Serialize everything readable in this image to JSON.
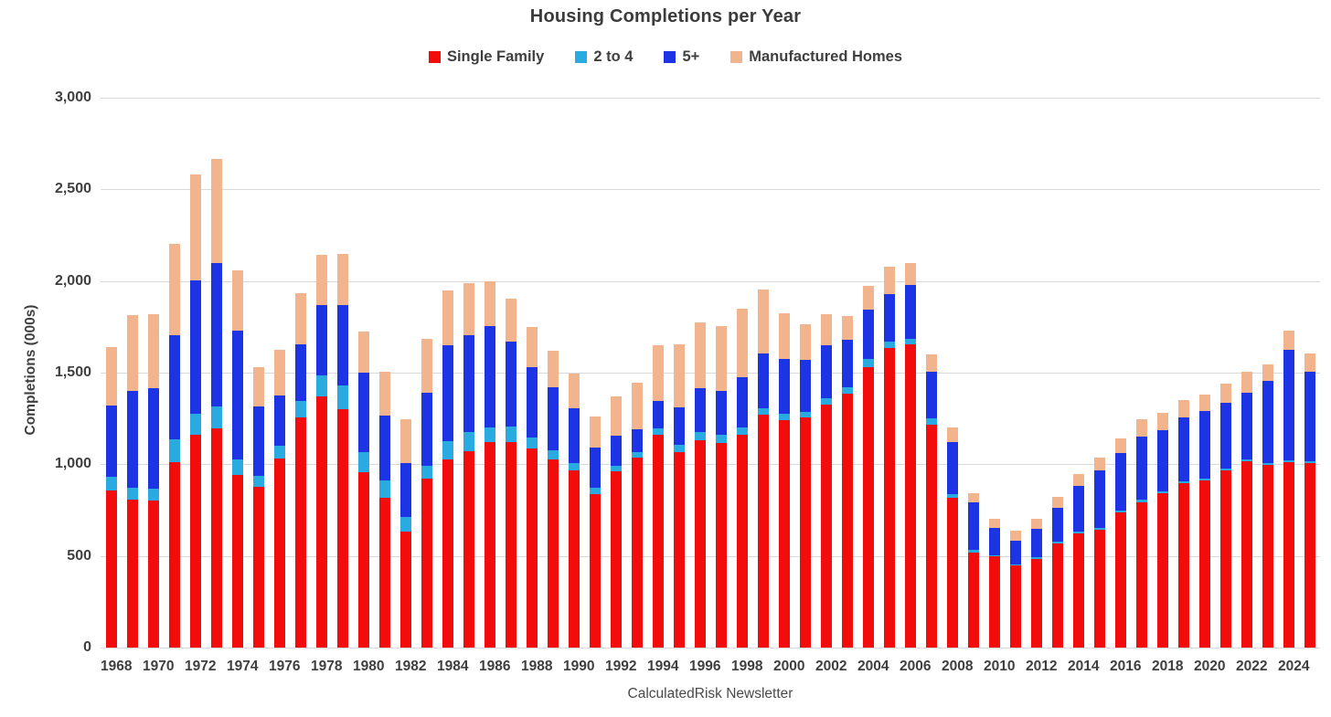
{
  "title": "Housing Completions per Year",
  "footer": "CalculatedRisk Newsletter",
  "y_axis": {
    "label": "Completions (000s)",
    "tick_labels": [
      "0",
      "500",
      "1,000",
      "1,500",
      "2,000",
      "2,500",
      "3,000"
    ],
    "tick_values": [
      0,
      500,
      1000,
      1500,
      2000,
      2500,
      3000
    ]
  },
  "legend": [
    {
      "label": "Single Family",
      "color": "#f20c0c"
    },
    {
      "label": "2 to 4",
      "color": "#29abe2"
    },
    {
      "label": "5+",
      "color": "#1c34e4"
    },
    {
      "label": "Manufactured Homes",
      "color": "#f1b48d"
    }
  ],
  "chart_data": {
    "type": "bar",
    "stacked": true,
    "title": "Housing Completions per Year",
    "xlabel": "",
    "ylabel": "Completions (000s)",
    "ylim": [
      0,
      3000
    ],
    "grid": true,
    "legend_position": "top",
    "categories": [
      1968,
      1969,
      1970,
      1971,
      1972,
      1973,
      1974,
      1975,
      1976,
      1977,
      1978,
      1979,
      1980,
      1981,
      1982,
      1983,
      1984,
      1985,
      1986,
      1987,
      1988,
      1989,
      1990,
      1991,
      1992,
      1993,
      1994,
      1995,
      1996,
      1997,
      1998,
      1999,
      2000,
      2001,
      2002,
      2003,
      2004,
      2005,
      2006,
      2007,
      2008,
      2009,
      2010,
      2011,
      2012,
      2013,
      2014,
      2015,
      2016,
      2017,
      2018,
      2019,
      2020,
      2021,
      2022,
      2023,
      2024,
      2025
    ],
    "x_tick_labels": [
      "1968",
      "1970",
      "1972",
      "1974",
      "1976",
      "1978",
      "1980",
      "1982",
      "1984",
      "1986",
      "1988",
      "1990",
      "1992",
      "1994",
      "1996",
      "1998",
      "2000",
      "2002",
      "2004",
      "2006",
      "2008",
      "2010",
      "2012",
      "2014",
      "2016",
      "2018",
      "2020",
      "2022",
      "2024"
    ],
    "series": [
      {
        "name": "Single Family",
        "color": "#f20c0c",
        "values": [
          859,
          808,
          802,
          1014,
          1160,
          1197,
          940,
          875,
          1034,
          1258,
          1369,
          1301,
          957,
          819,
          632,
          924,
          1025,
          1073,
          1120,
          1123,
          1085,
          1026,
          966,
          838,
          964,
          1039,
          1160,
          1066,
          1129,
          1116,
          1160,
          1270,
          1242,
          1256,
          1325,
          1386,
          1532,
          1636,
          1655,
          1218,
          819,
          520,
          497,
          447,
          483,
          569,
          625,
          645,
          738,
          795,
          840,
          898,
          910,
          965,
          1015,
          999,
          1011,
          1005
        ]
      },
      {
        "name": "2 to 4",
        "color": "#29abe2",
        "values": [
          75,
          66,
          65,
          120,
          118,
          118,
          85,
          60,
          68,
          90,
          117,
          130,
          110,
          95,
          80,
          70,
          103,
          101,
          80,
          83,
          60,
          50,
          41,
          36,
          30,
          29,
          34,
          43,
          45,
          44,
          42,
          34,
          36,
          31,
          37,
          33,
          42,
          32,
          31,
          31,
          17,
          13,
          9,
          8,
          9,
          11,
          9,
          9,
          11,
          12,
          10,
          10,
          10,
          10,
          12,
          10,
          13,
          12
        ]
      },
      {
        "name": "5+",
        "color": "#1c34e4",
        "values": [
          386,
          526,
          551,
          572,
          726,
          785,
          704,
          382,
          275,
          309,
          382,
          440,
          435,
          352,
          294,
          396,
          524,
          529,
          556,
          463,
          385,
          347,
          301,
          217,
          164,
          125,
          153,
          204,
          239,
          240,
          272,
          301,
          296,
          284,
          286,
          259,
          268,
          263,
          293,
          254,
          284,
          261,
          146,
          130,
          157,
          184,
          250,
          314,
          311,
          346,
          335,
          348,
          369,
          362,
          366,
          445,
          603,
          487
        ]
      },
      {
        "name": "Manufactured Homes",
        "color": "#f1b48d",
        "values": [
          318,
          413,
          401,
          497,
          576,
          567,
          329,
          213,
          246,
          277,
          276,
          277,
          222,
          241,
          240,
          296,
          295,
          284,
          244,
          233,
          218,
          198,
          188,
          171,
          211,
          254,
          304,
          340,
          363,
          354,
          373,
          348,
          250,
          193,
          169,
          131,
          131,
          147,
          117,
          96,
          82,
          50,
          50,
          52,
          55,
          60,
          64,
          71,
          81,
          93,
          97,
          95,
          94,
          106,
          113,
          89,
          103,
          101
        ]
      }
    ]
  }
}
